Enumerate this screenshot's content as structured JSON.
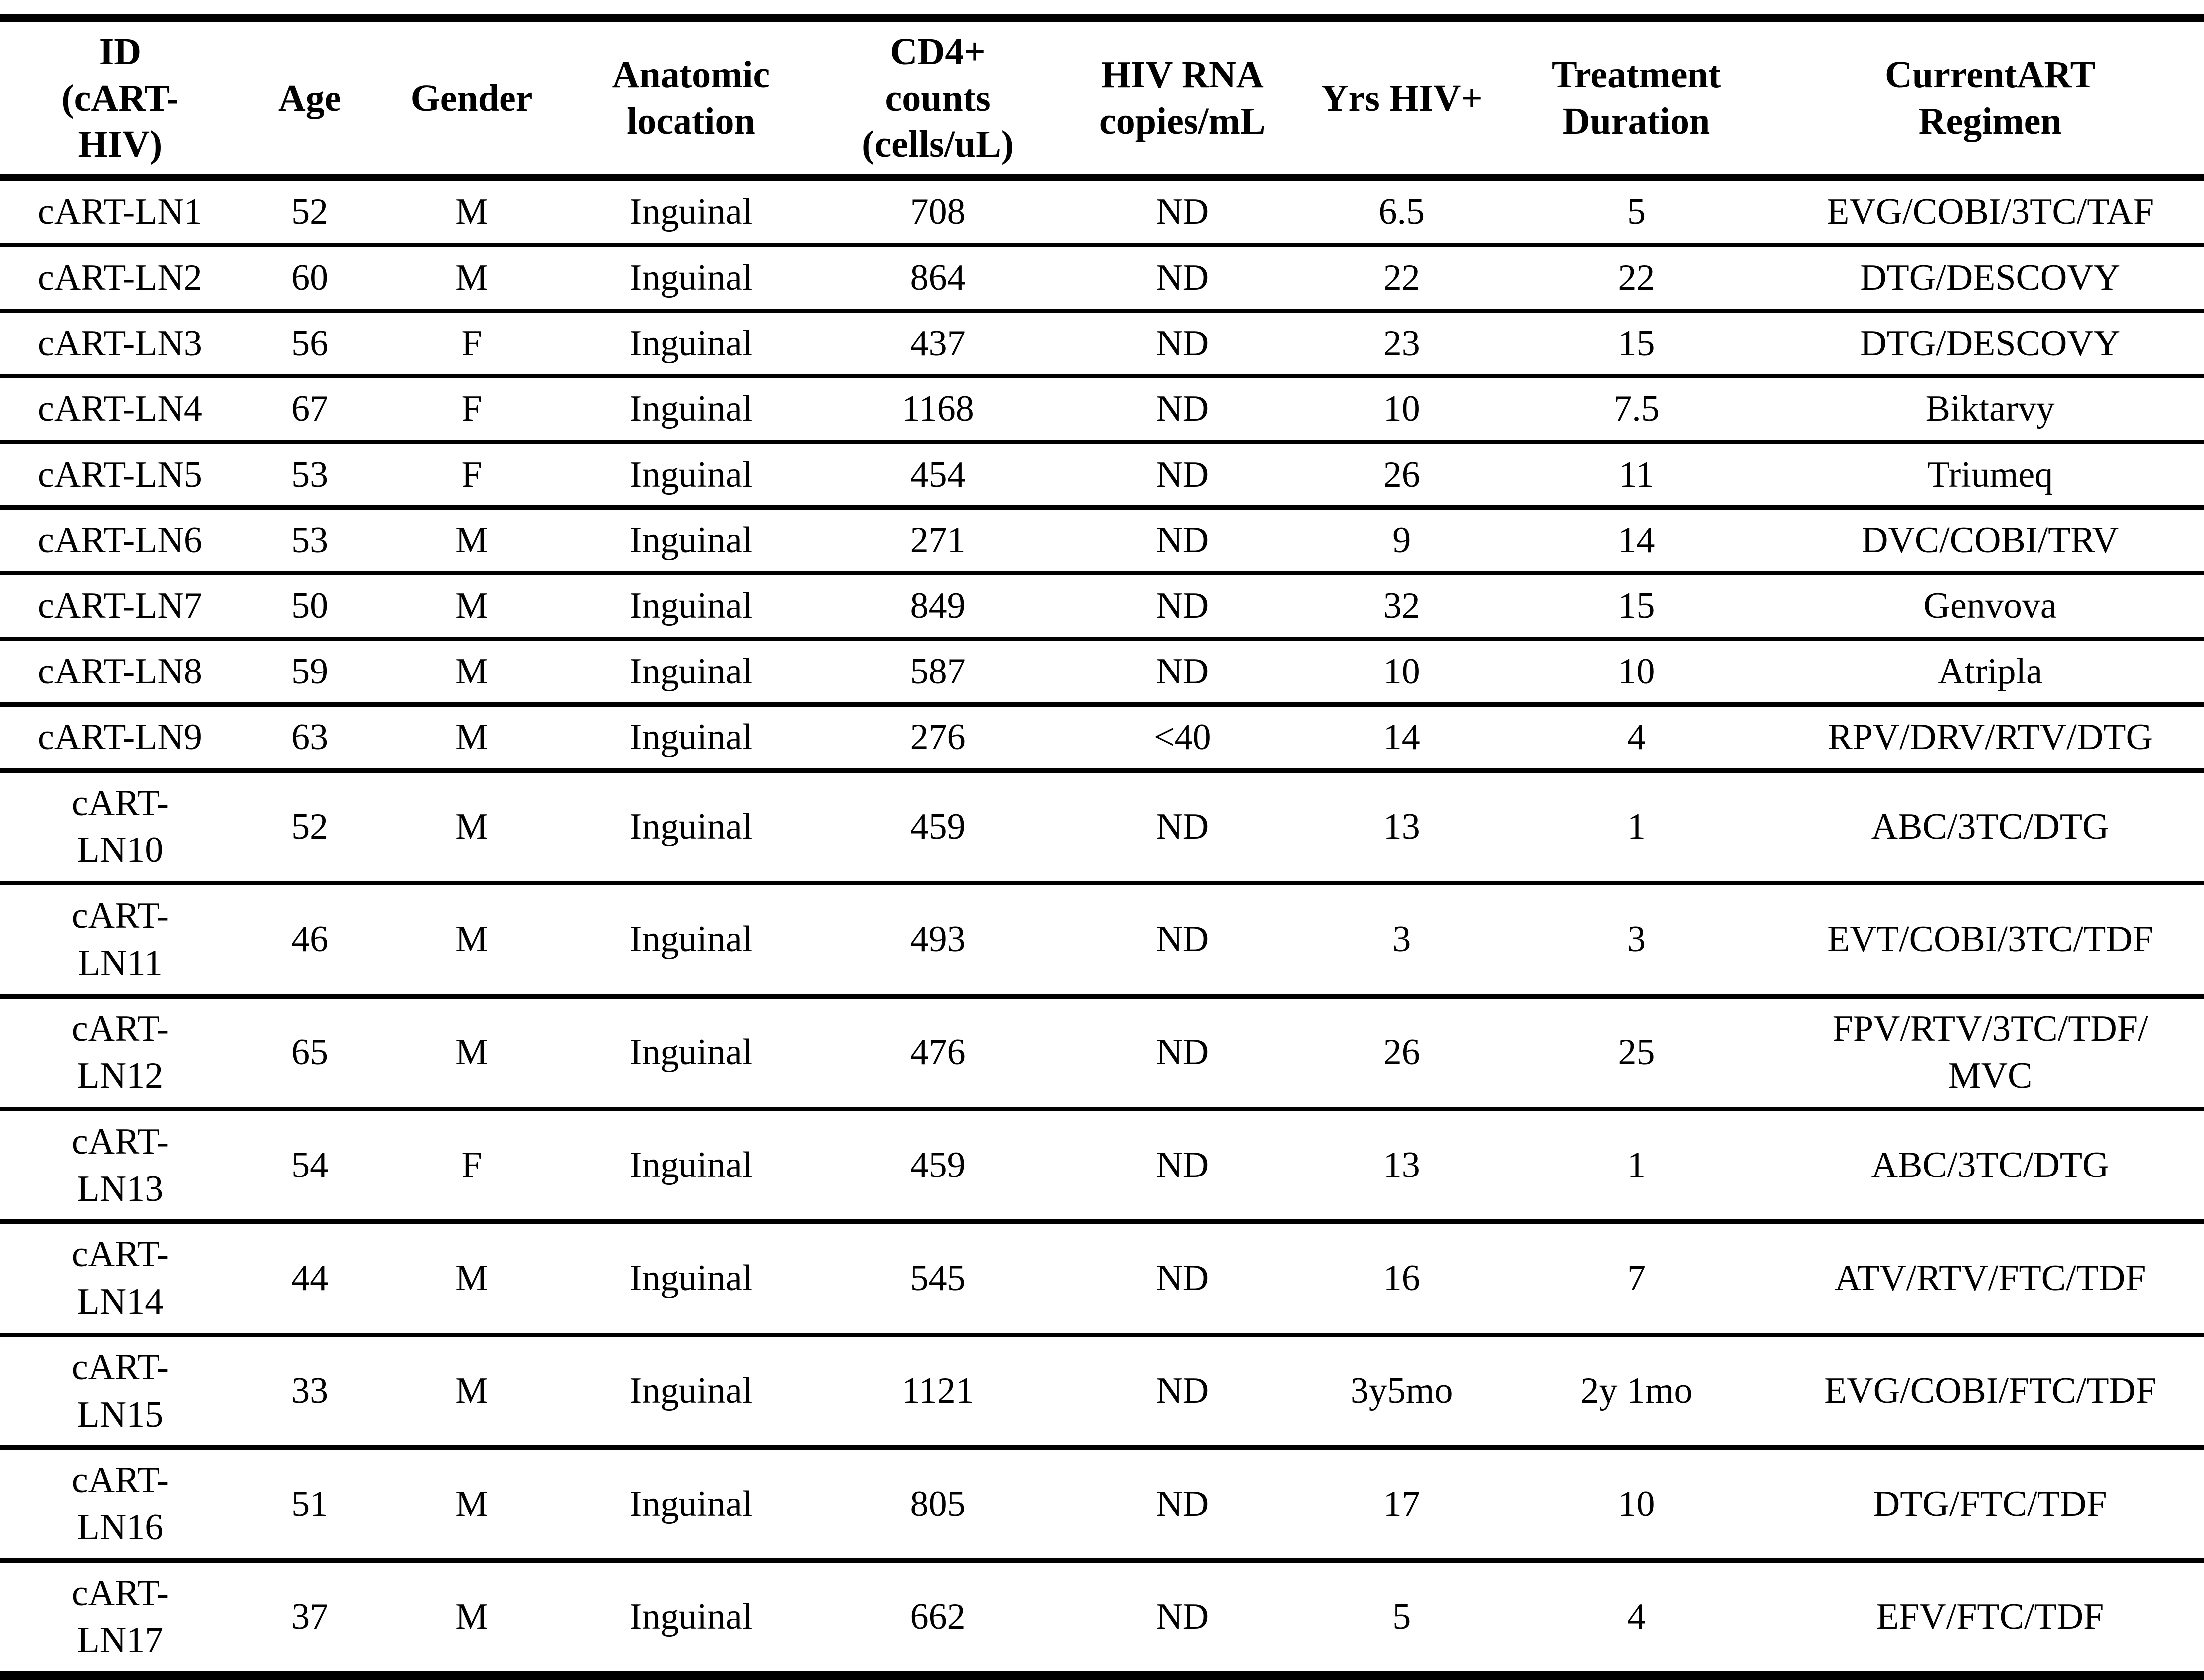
{
  "colors": {
    "text": "#000000",
    "background": "#ffffff",
    "rule": "#000000"
  },
  "table": {
    "columns": [
      {
        "key": "id",
        "label": "ID\n(cART-\nHIV)"
      },
      {
        "key": "age",
        "label": "Age"
      },
      {
        "key": "gender",
        "label": "Gender"
      },
      {
        "key": "anatomic",
        "label": "Anatomic\nlocation"
      },
      {
        "key": "cd4",
        "label": "CD4+\ncounts\n(cells/uL)"
      },
      {
        "key": "rna",
        "label": "HIV RNA\ncopies/mL"
      },
      {
        "key": "yrs",
        "label": "Yrs HIV+"
      },
      {
        "key": "duration",
        "label": "Treatment\nDuration"
      },
      {
        "key": "regimen",
        "label": "CurrentART\nRegimen"
      }
    ],
    "rows": [
      [
        "cART-LN1",
        "52",
        "M",
        "Inguinal",
        "708",
        "ND",
        "6.5",
        "5",
        "EVG/COBI/3TC/TAF"
      ],
      [
        "cART-LN2",
        "60",
        "M",
        "Inguinal",
        "864",
        "ND",
        "22",
        "22",
        "DTG/DESCOVY"
      ],
      [
        "cART-LN3",
        "56",
        "F",
        "Inguinal",
        "437",
        "ND",
        "23",
        "15",
        "DTG/DESCOVY"
      ],
      [
        "cART-LN4",
        "67",
        "F",
        "Inguinal",
        "1168",
        "ND",
        "10",
        "7.5",
        "Biktarvy"
      ],
      [
        "cART-LN5",
        "53",
        "F",
        "Inguinal",
        "454",
        "ND",
        "26",
        "11",
        "Triumeq"
      ],
      [
        "cART-LN6",
        "53",
        "M",
        "Inguinal",
        "271",
        "ND",
        "9",
        "14",
        "DVC/COBI/TRV"
      ],
      [
        "cART-LN7",
        "50",
        "M",
        "Inguinal",
        "849",
        "ND",
        "32",
        "15",
        "Genvova"
      ],
      [
        "cART-LN8",
        "59",
        "M",
        "Inguinal",
        "587",
        "ND",
        "10",
        "10",
        "Atripla"
      ],
      [
        "cART-LN9",
        "63",
        "M",
        "Inguinal",
        "276",
        "<40",
        "14",
        "4",
        "RPV/DRV/RTV/DTG"
      ],
      [
        "cART-\nLN10",
        "52",
        "M",
        "Inguinal",
        "459",
        "ND",
        "13",
        "1",
        "ABC/3TC/DTG"
      ],
      [
        "cART-\nLN11",
        "46",
        "M",
        "Inguinal",
        "493",
        "ND",
        "3",
        "3",
        "EVT/COBI/3TC/TDF"
      ],
      [
        "cART-\nLN12",
        "65",
        "M",
        "Inguinal",
        "476",
        "ND",
        "26",
        "25",
        "FPV/RTV/3TC/TDF/\nMVC"
      ],
      [
        "cART-\nLN13",
        "54",
        "F",
        "Inguinal",
        "459",
        "ND",
        "13",
        "1",
        "ABC/3TC/DTG"
      ],
      [
        "cART-\nLN14",
        "44",
        "M",
        "Inguinal",
        "545",
        "ND",
        "16",
        "7",
        "ATV/RTV/FTC/TDF"
      ],
      [
        "cART-\nLN15",
        "33",
        "M",
        "Inguinal",
        "1121",
        "ND",
        "3y5mo",
        "2y 1mo",
        "EVG/COBI/FTC/TDF"
      ],
      [
        "cART-\nLN16",
        "51",
        "M",
        "Inguinal",
        "805",
        "ND",
        "17",
        "10",
        "DTG/FTC/TDF"
      ],
      [
        "cART-\nLN17",
        "37",
        "M",
        "Inguinal",
        "662",
        "ND",
        "5",
        "4",
        "EFV/FTC/TDF"
      ]
    ]
  }
}
